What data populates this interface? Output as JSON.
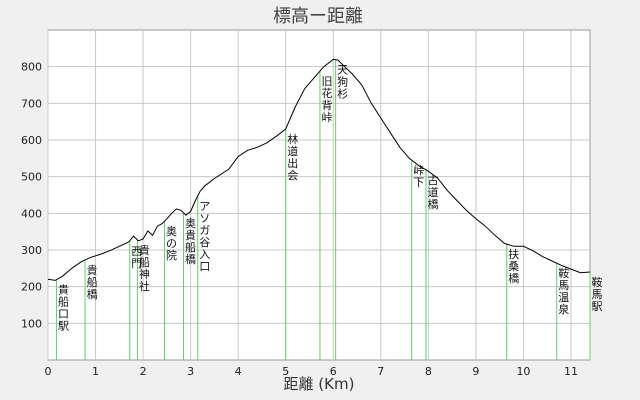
{
  "chart_data": {
    "type": "line",
    "title": "標高ー距離",
    "xlabel": "距離 (Km)",
    "ylabel": "",
    "xlim": [
      0,
      11.4
    ],
    "ylim": [
      0,
      900
    ],
    "xticks": [
      0,
      1,
      2,
      3,
      4,
      5,
      6,
      7,
      8,
      9,
      10,
      11
    ],
    "yticks": [
      100,
      200,
      300,
      400,
      500,
      600,
      700,
      800
    ],
    "grid": true,
    "colors": {
      "line": "#000000",
      "marker": "#66cc66",
      "grid": "#c8c8c8",
      "plot_bg": "#ffffff"
    },
    "series": [
      {
        "x": [
          0,
          0.15,
          0.3,
          0.5,
          0.7,
          0.9,
          1.1,
          1.3,
          1.5,
          1.7,
          1.8,
          1.9,
          2.0,
          2.1,
          2.2,
          2.3,
          2.4,
          2.5,
          2.6,
          2.7,
          2.8,
          2.9,
          3.0,
          3.1,
          3.2,
          3.3,
          3.5,
          3.8,
          4.0,
          4.2,
          4.4,
          4.6,
          4.8,
          5.0,
          5.2,
          5.4,
          5.6,
          5.8,
          6.0,
          6.1,
          6.2,
          6.4,
          6.6,
          6.8,
          7.0,
          7.2,
          7.4,
          7.6,
          7.8,
          8.0,
          8.2,
          8.4,
          8.6,
          8.8,
          9.0,
          9.2,
          9.4,
          9.6,
          9.8,
          10.0,
          10.2,
          10.4,
          10.6,
          10.8,
          11.0,
          11.2,
          11.4
        ],
        "y": [
          220,
          217,
          228,
          250,
          268,
          280,
          288,
          298,
          310,
          322,
          338,
          325,
          330,
          352,
          340,
          365,
          372,
          385,
          400,
          412,
          408,
          395,
          405,
          435,
          460,
          475,
          495,
          520,
          555,
          572,
          580,
          592,
          610,
          630,
          690,
          740,
          770,
          800,
          820,
          818,
          805,
          780,
          750,
          700,
          660,
          620,
          580,
          550,
          530,
          515,
          495,
          462,
          435,
          408,
          385,
          365,
          340,
          318,
          310,
          310,
          298,
          282,
          270,
          258,
          248,
          238,
          240
        ]
      }
    ],
    "annotations": [
      {
        "x": 0.18,
        "label": "貴船口駅"
      },
      {
        "x": 0.78,
        "label": "貴船橋"
      },
      {
        "x": 1.72,
        "label": "西門"
      },
      {
        "x": 1.88,
        "label": "貴船神社"
      },
      {
        "x": 2.45,
        "label": "奥の院"
      },
      {
        "x": 2.85,
        "label": "奥貴船橋"
      },
      {
        "x": 3.15,
        "label": "アソガ谷入口"
      },
      {
        "x": 5.0,
        "label": "林道出会"
      },
      {
        "x": 5.72,
        "label": "旧花背峠"
      },
      {
        "x": 6.05,
        "label": "天狗杉"
      },
      {
        "x": 7.65,
        "label": "峠下"
      },
      {
        "x": 7.95,
        "label": "古道橋"
      },
      {
        "x": 9.65,
        "label": "扶桑橋"
      },
      {
        "x": 10.7,
        "label": "鞍馬温泉"
      },
      {
        "x": 11.4,
        "label": "鞍馬駅"
      }
    ]
  }
}
